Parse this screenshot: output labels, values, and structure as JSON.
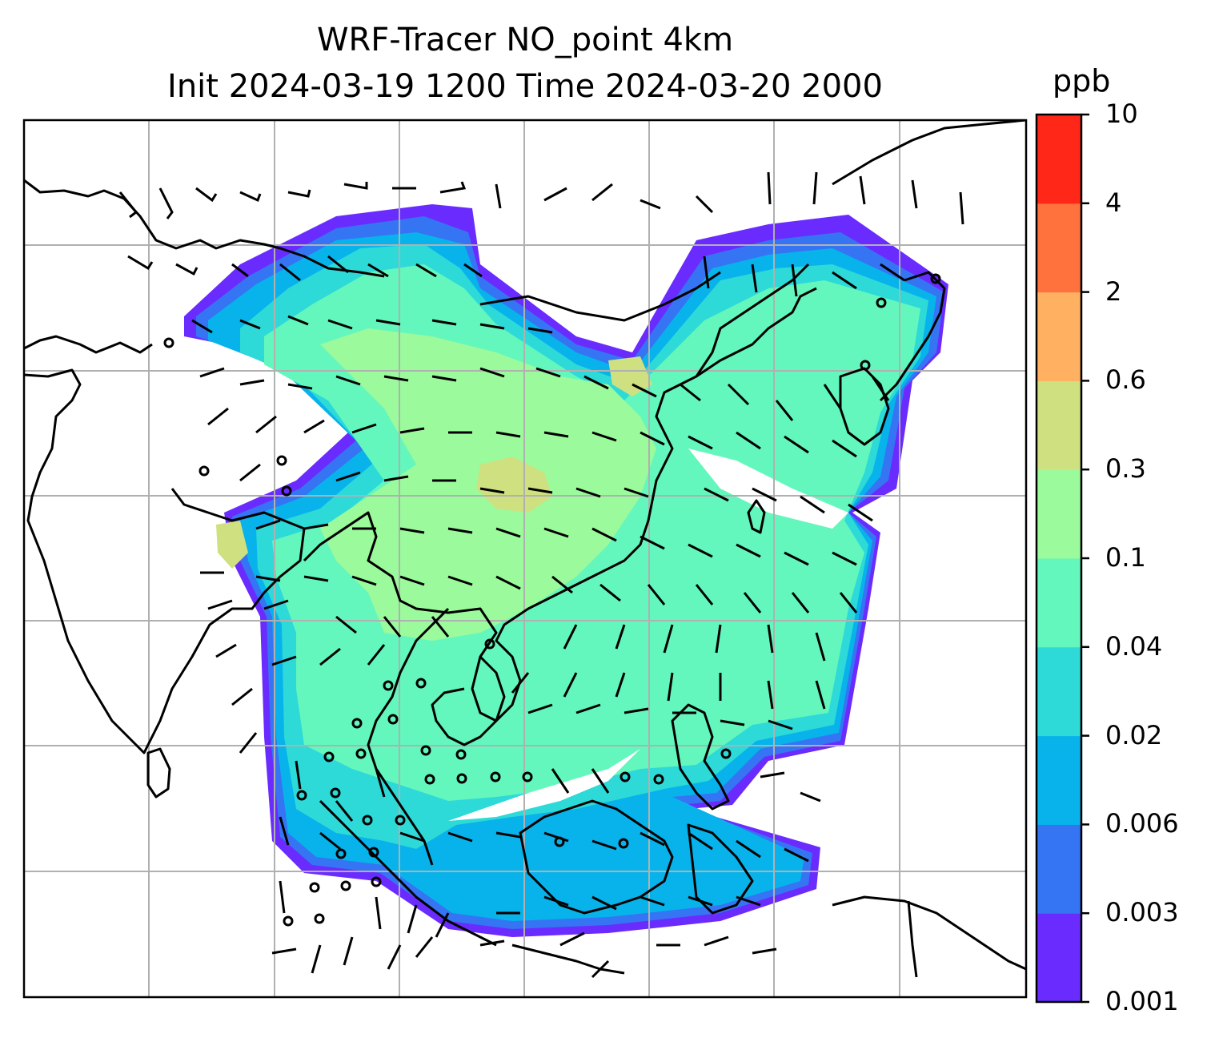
{
  "title": {
    "line1": "WRF-Tracer NO_point 4km",
    "line2": "Init 2024-03-19 1200 Time 2024-03-20 2000"
  },
  "colorbar": {
    "unit": "ppb",
    "levels": [
      "0.001",
      "0.003",
      "0.006",
      "0.02",
      "0.04",
      "0.1",
      "0.3",
      "0.6",
      "2",
      "4",
      "10"
    ],
    "colors": [
      "#6a2bff",
      "#3575f3",
      "#07b3ea",
      "#2ddad8",
      "#63f7bd",
      "#9bfa9b",
      "#cfe081",
      "#ffb060",
      "#ff713d",
      "#ff2717"
    ]
  },
  "map": {
    "gridlines": true,
    "grid_color": "#b0b0b0",
    "field": "NO_point tracer concentration with wind barbs"
  }
}
